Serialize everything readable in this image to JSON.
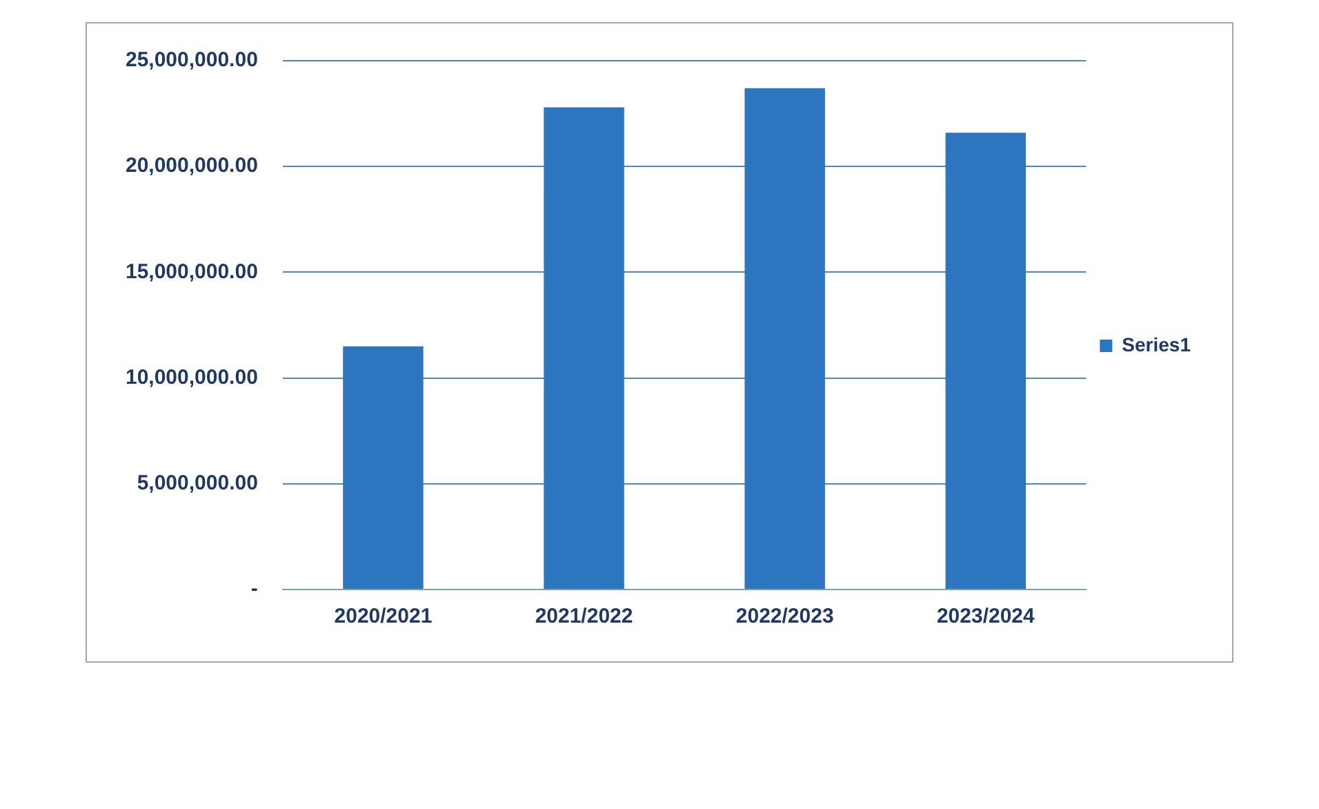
{
  "chart_data": {
    "type": "bar",
    "categories": [
      "2020/2021",
      "2021/2022",
      "2022/2023",
      "2023/2024"
    ],
    "series": [
      {
        "name": "Series1",
        "color": "#2e75c0",
        "values": [
          11500000,
          22800000,
          23700000,
          21600000
        ]
      }
    ],
    "ylim": [
      0,
      25000000
    ],
    "yticks": [
      {
        "value": 0,
        "label": "-"
      },
      {
        "value": 5000000,
        "label": "5,000,000.00"
      },
      {
        "value": 10000000,
        "label": "10,000,000.00"
      },
      {
        "value": 15000000,
        "label": "15,000,000.00"
      },
      {
        "value": 20000000,
        "label": "20,000,000.00"
      },
      {
        "value": 25000000,
        "label": "25,000,000.00"
      }
    ],
    "grid": "y",
    "legend": "right"
  }
}
